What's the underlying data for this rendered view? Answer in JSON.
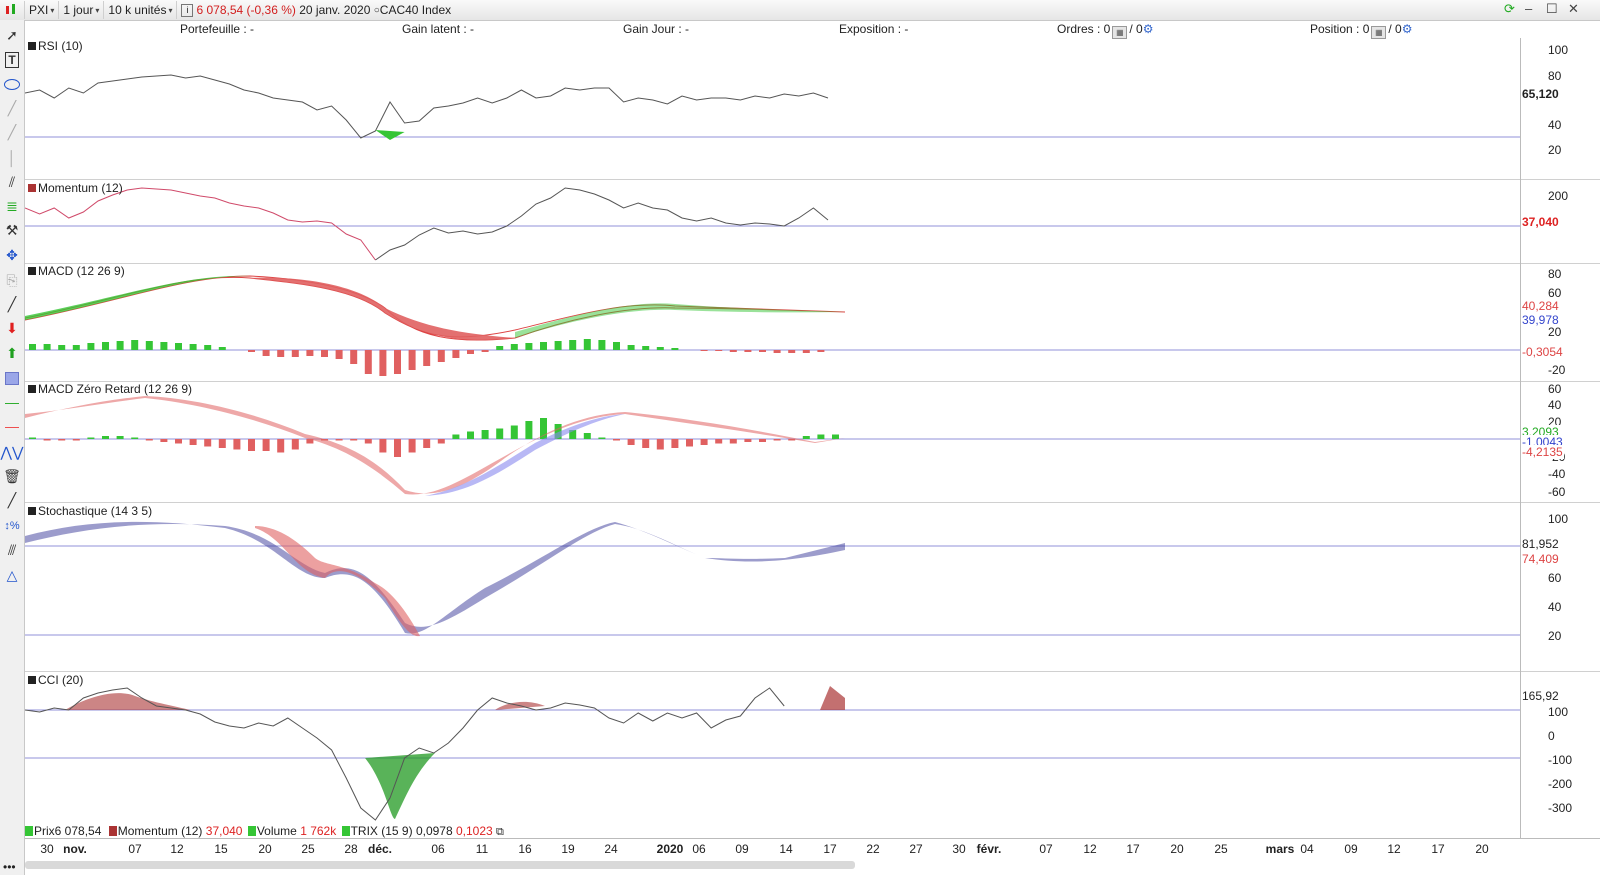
{
  "toolbar": {
    "symbol": "PXI",
    "period": "1 jour",
    "units": "10 k unités",
    "info_icon": "i",
    "price_change": "6 078,54 (-0,36 %)",
    "date": "20 janv. 2020",
    "instrument": "CAC40 Index"
  },
  "summary": {
    "portefeuille": "Portefeuille : -",
    "gain_latent": "Gain latent : -",
    "gain_jour": "Gain Jour : -",
    "exposition": "Exposition : -",
    "ordres_label": "Ordres : 0",
    "ordres_count2": "/ 0",
    "position_label": "Position : 0",
    "position_count2": "/ 0"
  },
  "panes": {
    "rsi": {
      "title": "RSI (10)",
      "axis": [
        "100",
        "80",
        "40",
        "20"
      ],
      "value": "65,120"
    },
    "momentum": {
      "title": "Momentum (12)",
      "axis": [
        "200"
      ],
      "value": "37,040"
    },
    "macd": {
      "title": "MACD (12 26 9)",
      "axis": [
        "80",
        "60",
        "20",
        "-20"
      ],
      "values": [
        "40,284",
        "39,978",
        "-0,3054"
      ]
    },
    "macdzr": {
      "title": "MACD Zéro Retard (12 26 9)",
      "axis": [
        "60",
        "40",
        "20",
        "-20",
        "-40",
        "-60"
      ],
      "values": [
        "3,2093",
        "-1,0043",
        "-4,2135"
      ]
    },
    "stoch": {
      "title": "Stochastique (14 3 5)",
      "axis": [
        "100",
        "60",
        "40",
        "20"
      ],
      "values": [
        "81,952",
        "74,409"
      ]
    },
    "cci": {
      "title": "CCI (20)",
      "axis": [
        "100",
        "0",
        "-100",
        "-200",
        "-300"
      ],
      "value": "165,92"
    }
  },
  "legend": {
    "prix_label": "Prix",
    "prix_value": "6 078,54",
    "mom_label": "Momentum (12)",
    "mom_value": "37,040",
    "vol_label": "Volume",
    "vol_value": "1 762k",
    "trix_label": "TRIX (15 9)",
    "trix_v1": "0,0978",
    "trix_v2": "0,1023"
  },
  "date_axis": [
    "30",
    "nov.",
    "07",
    "12",
    "15",
    "20",
    "25",
    "28",
    "déc.",
    "06",
    "11",
    "16",
    "19",
    "24",
    "2020",
    "06",
    "09",
    "14",
    "17",
    "22",
    "27",
    "30",
    "févr.",
    "07",
    "12",
    "17",
    "20",
    "25",
    "mars",
    "04",
    "09",
    "12",
    "17",
    "20"
  ],
  "colors": {
    "bull_fill": "#35c535",
    "bear_fill": "#e06060",
    "stoch_bull": "#3a3a9a",
    "ref_line": "#9090d8"
  },
  "icons": [
    "select-arrow-icon",
    "text-tool-icon",
    "ellipse-icon",
    "line-tool-icon",
    "trendline-icon",
    "fibonacci-icon",
    "gann-icon",
    "pitchfork-icon",
    "move-icon",
    "copy-icon",
    "pencil-icon",
    "sell-arrow-icon",
    "buy-arrow-icon",
    "rectangle-icon",
    "hline-green-icon",
    "hline-red-icon",
    "wave-icon",
    "trash-icon",
    "brush-icon",
    "percent-icon",
    "regression-icon",
    "triangle-icon"
  ]
}
